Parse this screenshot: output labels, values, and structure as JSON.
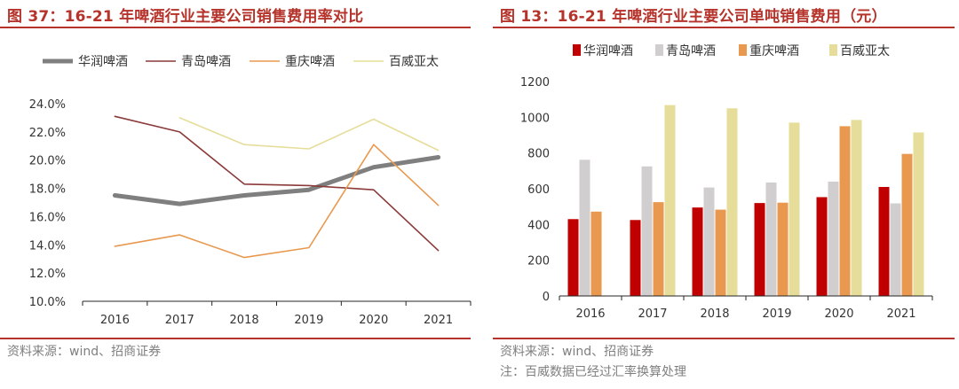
{
  "colors": {
    "accent": "#b5332a",
    "source_text": "#7f7f7f",
    "axis": "#262626"
  },
  "left": {
    "title": "图 37：16-21 年啤酒行业主要公司销售费用率对比",
    "source": "资料来源：wind、招商证券",
    "chart_data": {
      "type": "line",
      "title": "16-21 年啤酒行业主要公司销售费用率对比",
      "categories": [
        "2016",
        "2017",
        "2018",
        "2019",
        "2020",
        "2021"
      ],
      "series": [
        {
          "name": "华润啤酒",
          "color": "#7f7f7f",
          "width": 5,
          "values": [
            17.5,
            16.9,
            17.5,
            17.9,
            19.5,
            20.2
          ]
        },
        {
          "name": "青岛啤酒",
          "color": "#8b3a3a",
          "width": 1.6,
          "values": [
            23.1,
            22.0,
            18.3,
            18.2,
            17.9,
            13.6
          ]
        },
        {
          "name": "重庆啤酒",
          "color": "#e8994f",
          "width": 1.6,
          "values": [
            13.9,
            14.7,
            13.1,
            13.8,
            21.1,
            16.8
          ]
        },
        {
          "name": "百威亚太",
          "color": "#e6dd9a",
          "width": 1.6,
          "values": [
            null,
            23.0,
            21.1,
            20.8,
            22.9,
            20.7
          ]
        }
      ],
      "yticks": [
        "24.0%",
        "22.0%",
        "20.0%",
        "18.0%",
        "16.0%",
        "14.0%",
        "12.0%",
        "10.0%"
      ],
      "ylim": [
        10,
        24
      ],
      "grid": false,
      "legend": "top"
    }
  },
  "right": {
    "title": "图 13：16-21 年啤酒行业主要公司单吨销售费用（元）",
    "source": "资料来源：wind、招商证券",
    "note": "注：百威数据已经过汇率换算处理",
    "chart_data": {
      "type": "bar",
      "title": "16-21 年啤酒行业主要公司单吨销售费用（元）",
      "categories": [
        "2016",
        "2017",
        "2018",
        "2019",
        "2020",
        "2021"
      ],
      "series": [
        {
          "name": "华润啤酒",
          "color": "#c00000",
          "values": [
            430,
            425,
            495,
            520,
            553,
            610
          ]
        },
        {
          "name": "青岛啤酒",
          "color": "#d0cece",
          "values": [
            762,
            725,
            607,
            635,
            640,
            518
          ]
        },
        {
          "name": "重庆啤酒",
          "color": "#e8994f",
          "values": [
            472,
            525,
            483,
            522,
            950,
            795
          ]
        },
        {
          "name": "百威亚太",
          "color": "#e6dd9a",
          "values": [
            null,
            1068,
            1050,
            970,
            985,
            915
          ]
        }
      ],
      "yticks": [
        "1200",
        "1000",
        "800",
        "600",
        "400",
        "200",
        "0"
      ],
      "ylim": [
        0,
        1200
      ],
      "grid": false,
      "legend": "top"
    }
  }
}
